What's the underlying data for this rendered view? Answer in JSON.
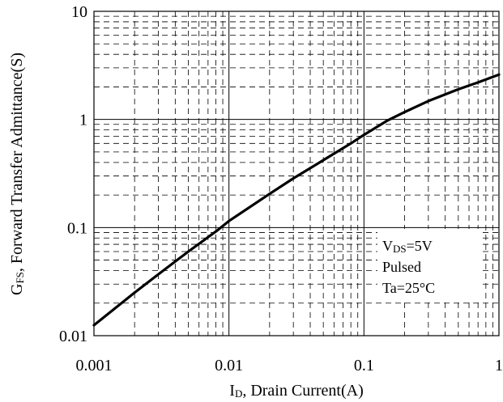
{
  "chart_data": {
    "type": "line",
    "x_scale": "log",
    "y_scale": "log",
    "xlim": [
      0.001,
      1
    ],
    "ylim": [
      0.01,
      10
    ],
    "grid": true,
    "x_ticks": [
      "0.001",
      "0.01",
      "0.1",
      "1"
    ],
    "y_ticks": [
      "0.01",
      "0.1",
      "1",
      "10"
    ],
    "xlabel": {
      "main": "I",
      "sub": "D",
      "rest": ", Drain Current(A)"
    },
    "ylabel": {
      "main": "G",
      "sub": "FS",
      "rest": ", Forward Transfer Admittance(S)"
    },
    "annotations": [
      {
        "main": "V",
        "sub": "DS",
        "rest": "=5V"
      },
      {
        "main": "Pulsed",
        "sub": "",
        "rest": ""
      },
      {
        "main": "Ta=25",
        "sub": "",
        "rest": "°C"
      }
    ],
    "series": [
      {
        "color": "#000000",
        "x": [
          0.001,
          0.002,
          0.003,
          0.005,
          0.008,
          0.01,
          0.02,
          0.03,
          0.05,
          0.08,
          0.1,
          0.15,
          0.2,
          0.3,
          0.5,
          0.7,
          1.0
        ],
        "y": [
          0.0125,
          0.025,
          0.037,
          0.06,
          0.092,
          0.115,
          0.205,
          0.285,
          0.42,
          0.6,
          0.72,
          0.98,
          1.17,
          1.48,
          1.9,
          2.2,
          2.6
        ]
      }
    ]
  }
}
